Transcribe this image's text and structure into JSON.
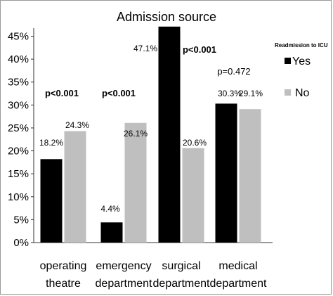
{
  "chart_data": {
    "type": "bar",
    "title": "Admission source",
    "categories": [
      [
        "operating",
        "theatre"
      ],
      [
        "emergency",
        "department"
      ],
      [
        "surgical",
        "department"
      ],
      [
        "medical",
        "department"
      ]
    ],
    "series": [
      {
        "name": "Yes",
        "values": [
          18.2,
          4.4,
          47.1,
          30.3
        ],
        "color": "#000000"
      },
      {
        "name": "No",
        "values": [
          24.3,
          26.1,
          20.6,
          29.1
        ],
        "color": "#bfbfbf"
      }
    ],
    "value_labels": [
      [
        "18.2%",
        "24.3%"
      ],
      [
        "4.4%",
        "26.1%"
      ],
      [
        "47.1%",
        "20.6%"
      ],
      [
        "30.3%",
        "29.1%"
      ]
    ],
    "p_values": [
      "p<0.001",
      "p<0.001",
      "p<0.001",
      "p=0.472"
    ],
    "y_ticks": [
      "0%",
      "5%",
      "10%",
      "15%",
      "20%",
      "25%",
      "30%",
      "35%",
      "40%",
      "45%"
    ],
    "ylim": [
      0,
      46
    ],
    "legend": {
      "title": "Readmission to ICU",
      "position": "right"
    },
    "grid": false
  }
}
